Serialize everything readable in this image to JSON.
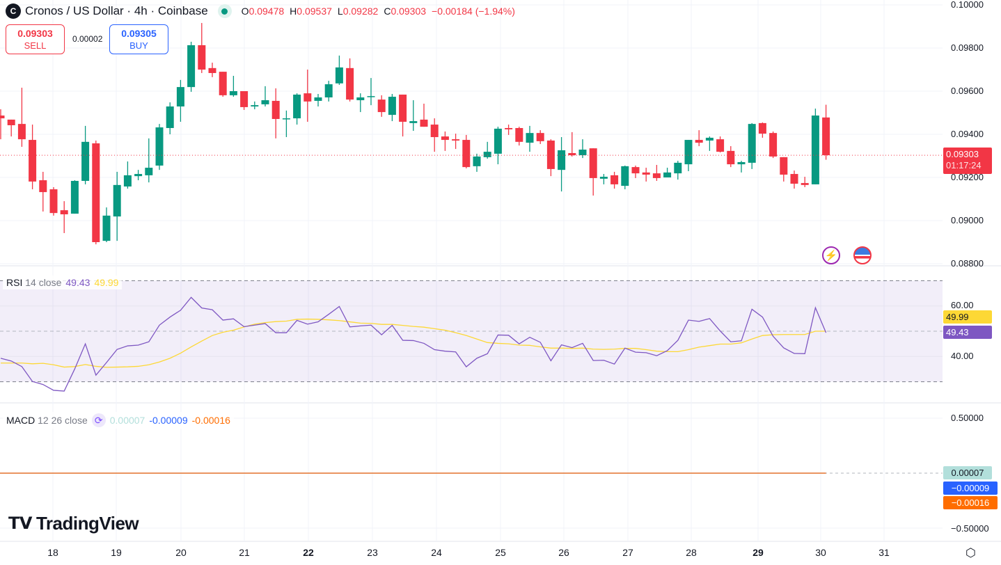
{
  "header": {
    "title": "Cronos / US Dollar · 4h · Coinbase",
    "logo_letter": "C",
    "open_label": "O",
    "open": "0.09478",
    "high_label": "H",
    "high": "0.09537",
    "low_label": "L",
    "low": "0.09282",
    "close_label": "C",
    "close": "0.09303",
    "change": "−0.00184 (−1.94%)"
  },
  "trade": {
    "sell_price": "0.09303",
    "sell_label": "SELL",
    "spread": "0.00002",
    "buy_price": "0.09305",
    "buy_label": "BUY"
  },
  "price_axis": {
    "ticks": [
      "0.10000",
      "0.09800",
      "0.09600",
      "0.09400",
      "0.09200",
      "0.09000",
      "0.08800"
    ],
    "current_price": "0.09303",
    "countdown": "01:17:24"
  },
  "rsi": {
    "label": "RSI",
    "params": "14 close",
    "value": "49.43",
    "ma_value": "49.99",
    "ticks": [
      "60.00",
      "40.00"
    ]
  },
  "macd": {
    "label": "MACD",
    "params": "12 26 close",
    "hist": "0.00007",
    "macd": "-0.00009",
    "signal": "-0.00016",
    "hist_tag": "0.00007",
    "macd_tag": "−0.00009",
    "signal_tag": "−0.00016",
    "ticks": [
      "0.50000",
      "-0.50000"
    ],
    "ticks_display": [
      "0.50000",
      "−0.50000"
    ]
  },
  "time_axis": {
    "labels": [
      "18",
      "19",
      "20",
      "21",
      "22",
      "23",
      "24",
      "25",
      "26",
      "27",
      "28",
      "29",
      "30",
      "31"
    ],
    "bold": [
      "22",
      "29"
    ]
  },
  "watermark": "TradingView",
  "colors": {
    "up": "#089981",
    "down": "#f23645",
    "rsi": "#7e57c2",
    "rsi_ma": "#fdd835",
    "macd": "#2962ff",
    "signal": "#ff6d00",
    "hist": "#b2dfdb"
  },
  "icons": {
    "lightning": "lightning-icon",
    "flag": "us-flag-icon",
    "settings": "settings-icon",
    "sync": "sync-icon"
  },
  "chart_data": [
    {
      "type": "candlestick",
      "title": "Cronos / US Dollar · 4h · Coinbase",
      "ylim": [
        0.088,
        0.1
      ],
      "grid": true,
      "fields": [
        "open",
        "high",
        "low",
        "close"
      ],
      "candles": [
        [
          0.09487,
          0.09516,
          0.09377,
          0.09474
        ],
        [
          0.09468,
          0.09468,
          0.0939,
          0.09442
        ],
        [
          0.09448,
          0.09616,
          0.09342,
          0.09377
        ],
        [
          0.09374,
          0.09445,
          0.09145,
          0.09181
        ],
        [
          0.09187,
          0.09226,
          0.09042,
          0.09132
        ],
        [
          0.09145,
          0.09155,
          0.09023,
          0.09035
        ],
        [
          0.09048,
          0.0909,
          0.08942,
          0.09029
        ],
        [
          0.09032,
          0.09187,
          0.09032,
          0.09184
        ],
        [
          0.09184,
          0.09439,
          0.09168,
          0.09365
        ],
        [
          0.09358,
          0.09371,
          0.0889,
          0.089
        ],
        [
          0.08906,
          0.09061,
          0.089,
          0.09023
        ],
        [
          0.09019,
          0.09226,
          0.08906,
          0.09165
        ],
        [
          0.09158,
          0.09274,
          0.09148,
          0.0921
        ],
        [
          0.09206,
          0.09235,
          0.09187,
          0.09216
        ],
        [
          0.0921,
          0.09381,
          0.09177,
          0.09245
        ],
        [
          0.09255,
          0.09448,
          0.09235,
          0.09432
        ],
        [
          0.09429,
          0.09548,
          0.094,
          0.09529
        ],
        [
          0.09529,
          0.09652,
          0.09458,
          0.09619
        ],
        [
          0.09619,
          0.09829,
          0.09597,
          0.09813
        ],
        [
          0.09813,
          0.09916,
          0.09684,
          0.097
        ],
        [
          0.09707,
          0.09732,
          0.09665,
          0.09684
        ],
        [
          0.0969,
          0.0969,
          0.09574,
          0.09581
        ],
        [
          0.09581,
          0.09671,
          0.09574,
          0.096
        ],
        [
          0.096,
          0.096,
          0.09513,
          0.09526
        ],
        [
          0.09529,
          0.09552,
          0.09516,
          0.09535
        ],
        [
          0.09539,
          0.09623,
          0.09529,
          0.09558
        ],
        [
          0.09555,
          0.09613,
          0.09381,
          0.09471
        ],
        [
          0.09471,
          0.0951,
          0.09387,
          0.09474
        ],
        [
          0.09474,
          0.0959,
          0.09445,
          0.09584
        ],
        [
          0.0959,
          0.097,
          0.09458,
          0.09552
        ],
        [
          0.09555,
          0.09587,
          0.09529,
          0.09571
        ],
        [
          0.09571,
          0.09648,
          0.09552,
          0.09632
        ],
        [
          0.09636,
          0.09765,
          0.09629,
          0.0971
        ],
        [
          0.09707,
          0.09752,
          0.09552,
          0.09561
        ],
        [
          0.09558,
          0.0959,
          0.09503,
          0.09571
        ],
        [
          0.09574,
          0.09661,
          0.09535,
          0.09577
        ],
        [
          0.09561,
          0.09581,
          0.09481,
          0.09503
        ],
        [
          0.0949,
          0.09587,
          0.09461,
          0.09574
        ],
        [
          0.09584,
          0.09584,
          0.0939,
          0.09458
        ],
        [
          0.09452,
          0.09558,
          0.09416,
          0.09461
        ],
        [
          0.09468,
          0.09542,
          0.09435,
          0.09435
        ],
        [
          0.09445,
          0.09474,
          0.09319,
          0.09387
        ],
        [
          0.0939,
          0.09413,
          0.09323,
          0.09374
        ],
        [
          0.09377,
          0.09403,
          0.09332,
          0.09371
        ],
        [
          0.09374,
          0.09397,
          0.09242,
          0.09248
        ],
        [
          0.09252,
          0.0931,
          0.09226,
          0.09297
        ],
        [
          0.09294,
          0.09365,
          0.09287,
          0.09319
        ],
        [
          0.0931,
          0.09435,
          0.09261,
          0.09426
        ],
        [
          0.09429,
          0.09445,
          0.09397,
          0.09423
        ],
        [
          0.09429,
          0.09435,
          0.09348,
          0.09365
        ],
        [
          0.09361,
          0.09439,
          0.09319,
          0.09406
        ],
        [
          0.09406,
          0.09419,
          0.09355,
          0.09368
        ],
        [
          0.09371,
          0.09377,
          0.09206,
          0.09239
        ],
        [
          0.09235,
          0.09387,
          0.09135,
          0.09326
        ],
        [
          0.09313,
          0.0941,
          0.09297,
          0.09303
        ],
        [
          0.09303,
          0.09377,
          0.0929,
          0.09329
        ],
        [
          0.09335,
          0.09335,
          0.09116,
          0.09197
        ],
        [
          0.09194,
          0.09216,
          0.09168,
          0.09203
        ],
        [
          0.0921,
          0.09226,
          0.09148,
          0.09168
        ],
        [
          0.09161,
          0.09255,
          0.09145,
          0.09252
        ],
        [
          0.09248,
          0.09255,
          0.09197,
          0.09219
        ],
        [
          0.09223,
          0.09245,
          0.09181,
          0.09213
        ],
        [
          0.09219,
          0.09258,
          0.09184,
          0.09197
        ],
        [
          0.092,
          0.09245,
          0.092,
          0.09223
        ],
        [
          0.09219,
          0.09277,
          0.0919,
          0.09268
        ],
        [
          0.09261,
          0.09374,
          0.09229,
          0.09374
        ],
        [
          0.09374,
          0.09419,
          0.09345,
          0.09361
        ],
        [
          0.09371,
          0.0939,
          0.09323,
          0.09384
        ],
        [
          0.09377,
          0.0939,
          0.09316,
          0.09319
        ],
        [
          0.09323,
          0.09345,
          0.09248,
          0.09261
        ],
        [
          0.09261,
          0.09277,
          0.09223,
          0.09271
        ],
        [
          0.09268,
          0.09452,
          0.09239,
          0.09448
        ],
        [
          0.09452,
          0.09455,
          0.09384,
          0.09403
        ],
        [
          0.09406,
          0.09413,
          0.0929,
          0.09297
        ],
        [
          0.09294,
          0.09294,
          0.09181,
          0.09213
        ],
        [
          0.09216,
          0.09232,
          0.09148,
          0.09171
        ],
        [
          0.09174,
          0.09203,
          0.09155,
          0.09165
        ],
        [
          0.09168,
          0.09519,
          0.09168,
          0.09487
        ],
        [
          0.09478,
          0.09537,
          0.09282,
          0.09303
        ]
      ]
    },
    {
      "type": "line",
      "title": "RSI 14 close",
      "ylim": [
        20,
        80
      ],
      "bands": [
        30,
        50,
        70
      ],
      "series": [
        {
          "values": [
            39.3,
            38.2,
            36.0,
            30.1,
            28.9,
            26.6,
            26.3,
            35.1,
            45.0,
            32.6,
            37.6,
            42.8,
            44.2,
            44.5,
            45.8,
            52.4,
            55.6,
            58.3,
            63.4,
            59.2,
            58.5,
            54.4,
            54.9,
            51.8,
            52.4,
            53.0,
            49.4,
            49.4,
            54.3,
            52.8,
            53.7,
            56.7,
            59.8,
            51.7,
            52.1,
            52.4,
            48.6,
            52.3,
            46.4,
            46.3,
            45.2,
            42.7,
            42.1,
            41.8,
            35.9,
            39.3,
            41.1,
            48.5,
            48.4,
            45.0,
            47.6,
            45.6,
            38.3,
            44.6,
            43.5,
            45.2,
            38.4,
            38.5,
            37.0,
            43.3,
            41.7,
            41.5,
            40.3,
            42.3,
            46.4,
            54.4,
            53.9,
            55.0,
            50.1,
            45.8,
            46.2,
            58.7,
            55.6,
            48.0,
            43.4,
            41.2,
            41.1,
            59.3,
            49.43
          ]
        },
        {
          "values": [
            37.4,
            37.4,
            37.4,
            37.1,
            37.3,
            36.7,
            35.8,
            36.0,
            36.8,
            36.1,
            35.7,
            35.8,
            35.9,
            36.1,
            36.7,
            37.8,
            39.3,
            41.3,
            43.8,
            46.1,
            48.3,
            49.6,
            50.4,
            51.7,
            52.8,
            53.4,
            53.8,
            54.0,
            54.7,
            54.8,
            54.7,
            54.5,
            54.2,
            53.7,
            53.2,
            53.1,
            52.7,
            52.7,
            52.3,
            51.9,
            51.6,
            51.0,
            50.4,
            49.4,
            48.3,
            46.9,
            45.5,
            45.2,
            45.0,
            44.5,
            44.4,
            43.8,
            43.3,
            43.3,
            43.2,
            43.3,
            42.9,
            42.8,
            42.9,
            43.2,
            43.2,
            42.7,
            42.1,
            41.9,
            41.9,
            42.7,
            43.7,
            44.3,
            44.9,
            44.9,
            45.4,
            46.9,
            48.3,
            48.6,
            48.7,
            48.7,
            48.7,
            50.0,
            49.99
          ]
        }
      ]
    },
    {
      "type": "line",
      "title": "MACD 12 26 close",
      "ylim": [
        -0.6,
        0.6
      ],
      "latest": {
        "histogram": 7e-05,
        "macd": -9e-05,
        "signal": -0.00016
      }
    }
  ]
}
